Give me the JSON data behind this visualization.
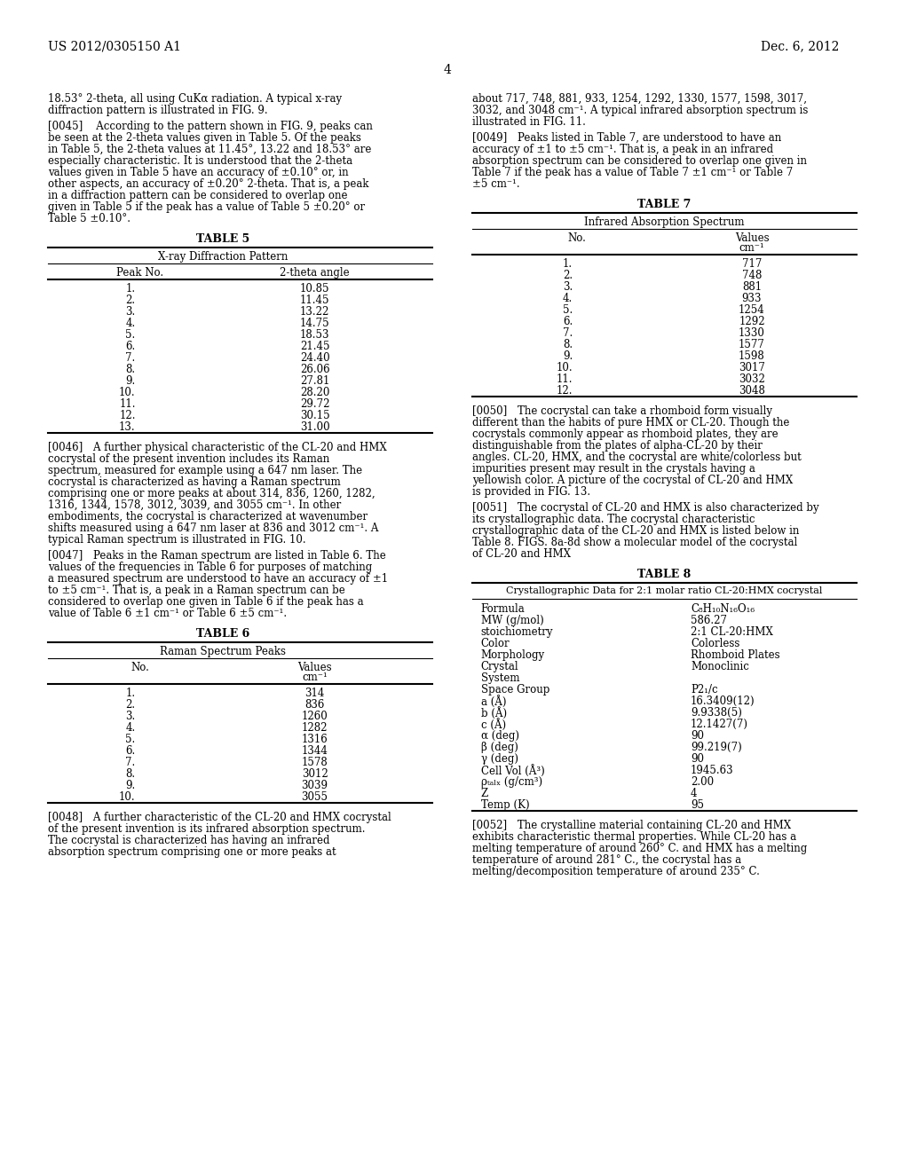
{
  "page_number": "4",
  "patent_number": "US 2012/0305150 A1",
  "patent_date": "Dec. 6, 2012",
  "left_col_paragraphs": [
    {
      "tag": "[0045]",
      "text": "According to the pattern shown in FIG. 9, peaks can be seen at the 2-theta values given in Table 5. Of the peaks in Table 5, the 2-theta values at 11.45°, 13.22 and 18.53° are especially characteristic. It is understood that the 2-theta values given in Table 5 have an accuracy of ±0.10° or, in other aspects, an accuracy of ±0.20° 2-theta. That is, a peak in a diffraction pattern can be considered to overlap one given in Table 5 if the peak has a value of Table 5 ±0.20° or Table 5 ±0.10°."
    }
  ],
  "left_col_intro": "18.53° 2-theta, all using CuKα radiation. A typical x-ray diffraction pattern is illustrated in FIG. 9.",
  "table5_title": "TABLE 5",
  "table5_subtitle": "X-ray Diffraction Pattern",
  "table5_col1": "Peak No.",
  "table5_col2": "2-theta angle",
  "table5_data": [
    [
      "1.",
      "10.85"
    ],
    [
      "2.",
      "11.45"
    ],
    [
      "3.",
      "13.22"
    ],
    [
      "4.",
      "14.75"
    ],
    [
      "5.",
      "18.53"
    ],
    [
      "6.",
      "21.45"
    ],
    [
      "7.",
      "24.40"
    ],
    [
      "8.",
      "26.06"
    ],
    [
      "9.",
      "27.81"
    ],
    [
      "10.",
      "28.20"
    ],
    [
      "11.",
      "29.72"
    ],
    [
      "12.",
      "30.15"
    ],
    [
      "13.",
      "31.00"
    ]
  ],
  "p0046": "[0046] A further physical characteristic of the CL-20 and HMX cocrystal of the present invention includes its Raman spectrum, measured for example using a 647 nm laser. The cocrystal is characterized as having a Raman spectrum comprising one or more peaks at about 314, 836, 1260, 1282, 1316, 1344, 1578, 3012, 3039, and 3055 cm⁻¹. In other embodiments, the cocrystal is characterized at wavenumber shifts measured using a 647 nm laser at 836 and 3012 cm⁻¹. A typical Raman spectrum is illustrated in FIG. 10.",
  "p0047": "[0047] Peaks in the Raman spectrum are listed in Table 6. The values of the frequencies in Table 6 for purposes of matching a measured spectrum are understood to have an accuracy of ±1 to ±5 cm⁻¹. That is, a peak in a Raman spectrum can be considered to overlap one given in Table 6 if the peak has a value of Table 6 ±1 cm⁻¹ or Table 6 ±5 cm⁻¹.",
  "table6_title": "TABLE 6",
  "table6_subtitle": "Raman Spectrum Peaks",
  "table6_col1": "No.",
  "table6_col2_line1": "Values",
  "table6_col2_line2": "cm⁻¹",
  "table6_data": [
    [
      "1.",
      "314"
    ],
    [
      "2.",
      "836"
    ],
    [
      "3.",
      "1260"
    ],
    [
      "4.",
      "1282"
    ],
    [
      "5.",
      "1316"
    ],
    [
      "6.",
      "1344"
    ],
    [
      "7.",
      "1578"
    ],
    [
      "8.",
      "3012"
    ],
    [
      "9.",
      "3039"
    ],
    [
      "10.",
      "3055"
    ]
  ],
  "p0048": "[0048] A further characteristic of the CL-20 and HMX cocrystal of the present invention is its infrared absorption spectrum. The cocrystal is characterized has having an infrared absorption spectrum comprising one or more peaks at",
  "right_col_intro": "about 717, 748, 881, 933, 1254, 1292, 1330, 1577, 1598, 3017, 3032, and 3048 cm⁻¹. A typical infrared absorption spectrum is illustrated in FIG. 11.",
  "p0049": "[0049] Peaks listed in Table 7, are understood to have an accuracy of ±1 to ±5 cm⁻¹. That is, a peak in an infrared absorption spectrum can be considered to overlap one given in Table 7 if the peak has a value of Table 7 ±1 cm⁻¹ or Table 7 ±5 cm⁻¹.",
  "table7_title": "TABLE 7",
  "table7_subtitle": "Infrared Absorption Spectrum",
  "table7_col1": "No.",
  "table7_col2_line1": "Values",
  "table7_col2_line2": "cm⁻¹",
  "table7_data": [
    [
      "1.",
      "717"
    ],
    [
      "2.",
      "748"
    ],
    [
      "3.",
      "881"
    ],
    [
      "4.",
      "933"
    ],
    [
      "5.",
      "1254"
    ],
    [
      "6.",
      "1292"
    ],
    [
      "7.",
      "1330"
    ],
    [
      "8.",
      "1577"
    ],
    [
      "9.",
      "1598"
    ],
    [
      "10.",
      "3017"
    ],
    [
      "11.",
      "3032"
    ],
    [
      "12.",
      "3048"
    ]
  ],
  "p0050": "[0050] The cocrystal can take a rhomboid form visually different than the habits of pure HMX or CL-20. Though the cocrystals commonly appear as rhomboid plates, they are distinguishable from the plates of alpha-CL-20 by their angles. CL-20, HMX, and the cocrystal are white/colorless but impurities present may result in the crystals having a yellowish color. A picture of the cocrystal of CL-20 and HMX is provided in FIG. 13.",
  "p0051": "[0051] The cocrystal of CL-20 and HMX is also characterized by its crystallographic data. The cocrystal characteristic crystallographic data of the CL-20 and HMX is listed below in Table 8. FIGS. 8a-8d show a molecular model of the cocrystal of CL-20 and HMX",
  "table8_title": "TABLE 8",
  "table8_subtitle": "Crystallographic Data for 2:1 molar ratio CL-20:HMX cocrystal",
  "table8_data": [
    [
      "Formula",
      "C₈H₁₀N₁₆O₁₆"
    ],
    [
      "MW (g/mol)",
      "586.27"
    ],
    [
      "stoichiometry",
      "2:1 CL-20:HMX"
    ],
    [
      "Color",
      "Colorless"
    ],
    [
      "Morphology",
      "Rhomboid Plates"
    ],
    [
      "Crystal",
      "Monoclinic"
    ],
    [
      "System",
      ""
    ],
    [
      "Space Group",
      "P2₁/c"
    ],
    [
      "a (Å)",
      "16.3409(12)"
    ],
    [
      "b (Å)",
      "9.9338(5)"
    ],
    [
      "c (Å)",
      "12.1427(7)"
    ],
    [
      "α (deg)",
      "90"
    ],
    [
      "β (deg)",
      "99.219(7)"
    ],
    [
      "γ (deg)",
      "90"
    ],
    [
      "Cell Vol (Å³)",
      "1945.63"
    ],
    [
      "ρₜₐₗₓ (g/cm³)",
      "2.00"
    ],
    [
      "Z",
      "4"
    ],
    [
      "Temp (K)",
      "95"
    ]
  ],
  "p0052": "[0052] The crystalline material containing CL-20 and HMX exhibits characteristic thermal properties. While CL-20 has a melting temperature of around 260° C. and HMX has a melting temperature of around 281° C., the cocrystal has a melting/decomposition temperature of around 235° C."
}
